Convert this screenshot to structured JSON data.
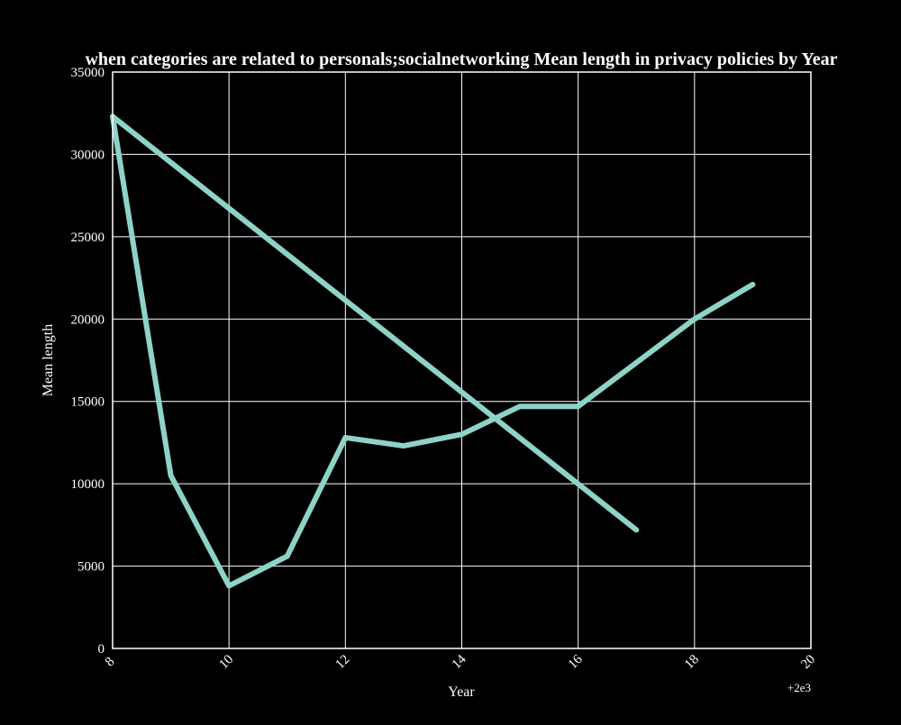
{
  "chart_data": {
    "type": "line",
    "title": "when categories are related to personals;socialnetworking Mean length in privacy policies by Year",
    "xlabel": "Year",
    "ylabel": "Mean length",
    "x_offset_label": "+2e3",
    "xlim": [
      8,
      20
    ],
    "ylim": [
      0,
      35000
    ],
    "x_ticks": [
      8,
      10,
      12,
      14,
      16,
      18,
      20
    ],
    "x_tick_labels": [
      "8",
      "10",
      "12",
      "14",
      "16",
      "18",
      "20"
    ],
    "y_ticks": [
      0,
      5000,
      10000,
      15000,
      20000,
      25000,
      30000,
      35000
    ],
    "y_tick_labels": [
      "0",
      "5000",
      "10000",
      "15000",
      "20000",
      "25000",
      "30000",
      "35000"
    ],
    "grid": true,
    "line_color": "#8dd3c7",
    "background": "#000000",
    "series": [
      {
        "x": [
          8,
          9,
          10,
          11,
          12,
          13,
          14,
          15,
          16,
          18,
          19
        ],
        "values": [
          32300,
          10500,
          3800,
          5600,
          12800,
          12300,
          13000,
          14700,
          14700,
          20000,
          22100
        ]
      },
      {
        "x": [
          8,
          17
        ],
        "values": [
          32300,
          7200
        ]
      }
    ]
  }
}
